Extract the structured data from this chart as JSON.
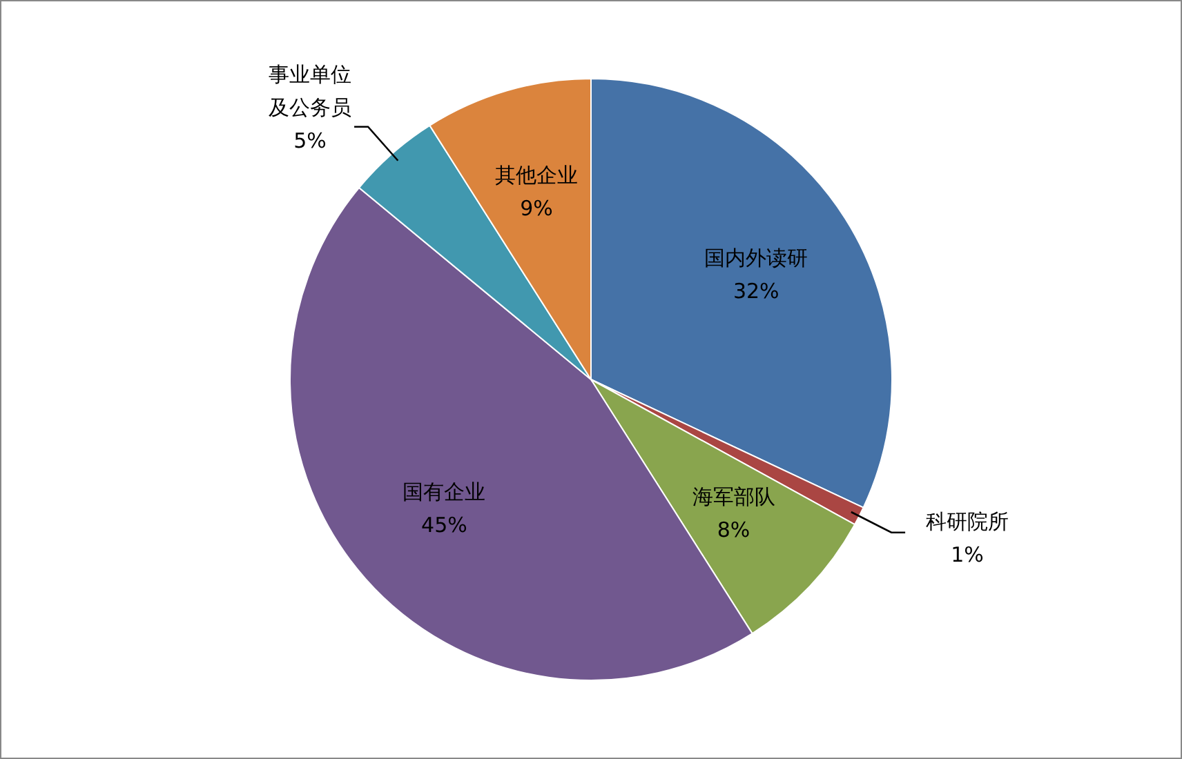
{
  "chart_data": {
    "type": "pie",
    "categories": [
      "国内外读研",
      "科研院所",
      "海军部队",
      "国有企业",
      "事业单位及公务员",
      "其他企业"
    ],
    "values": [
      32,
      1,
      8,
      45,
      5,
      9
    ],
    "value_labels": [
      "32%",
      "1%",
      "8%",
      "45%",
      "5%",
      "9%"
    ],
    "colors": [
      "#4572a7",
      "#aa4643",
      "#89a54e",
      "#71588f",
      "#4198af",
      "#db843d"
    ]
  }
}
